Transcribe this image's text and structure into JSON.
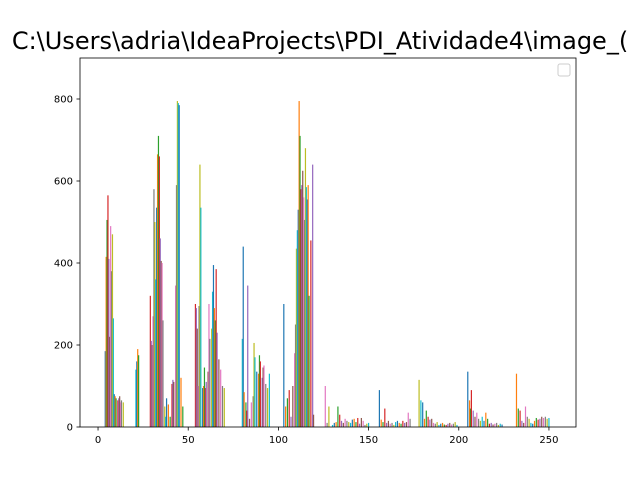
{
  "window": {
    "title": "C:\\Users\\adria\\IdeaProjects\\PDI_Atividade4\\image_("
  },
  "chart_data": {
    "type": "bar",
    "title": "C:\\Users\\adria\\IdeaProjects\\PDI_Atividade4\\image_(",
    "xlabel": "",
    "ylabel": "",
    "xlim": [
      -10,
      265
    ],
    "ylim": [
      0,
      800
    ],
    "y_display_max": 900,
    "grid": false,
    "legend": {
      "placement": "top-right",
      "entries": []
    },
    "x_ticks": [
      0,
      50,
      100,
      150,
      200,
      250
    ],
    "y_ticks": [
      0,
      200,
      400,
      600,
      800
    ],
    "x_tick_labels": [
      "0",
      "50",
      "100",
      "150",
      "200",
      "250"
    ],
    "y_tick_labels": [
      "0",
      "200",
      "400",
      "600",
      "800"
    ],
    "palette": [
      "#1f77b4",
      "#ff7f0e",
      "#2ca02c",
      "#d62728",
      "#9467bd",
      "#8c564b",
      "#e377c2",
      "#7f7f7f",
      "#bcbd22",
      "#17becf"
    ],
    "series_note_bins": [
      [
        4,
        185
      ],
      [
        4.5,
        415
      ],
      [
        5,
        505
      ],
      [
        5.5,
        565
      ],
      [
        6,
        410
      ],
      [
        6.5,
        220
      ],
      [
        7,
        490
      ],
      [
        7.5,
        380
      ],
      [
        8,
        470
      ],
      [
        8.5,
        265
      ],
      [
        9,
        80
      ],
      [
        9.5,
        75
      ],
      [
        10,
        70
      ],
      [
        11,
        65
      ],
      [
        11.5,
        70
      ],
      [
        12,
        75
      ],
      [
        12.5,
        60
      ],
      [
        13,
        65
      ],
      [
        14,
        60
      ],
      [
        21,
        140
      ],
      [
        21.5,
        160
      ],
      [
        22,
        190
      ],
      [
        22.5,
        175
      ],
      [
        29,
        320
      ],
      [
        29.5,
        210
      ],
      [
        30,
        200
      ],
      [
        30.5,
        270
      ],
      [
        31,
        580
      ],
      [
        31.5,
        500
      ],
      [
        32,
        360
      ],
      [
        32.5,
        535
      ],
      [
        33,
        665
      ],
      [
        33.5,
        710
      ],
      [
        34,
        660
      ],
      [
        34.5,
        460
      ],
      [
        35,
        405
      ],
      [
        35.5,
        400
      ],
      [
        36,
        260
      ],
      [
        37,
        50
      ],
      [
        37.5,
        25
      ],
      [
        38,
        70
      ],
      [
        39,
        55
      ],
      [
        40,
        25
      ],
      [
        41,
        105
      ],
      [
        41.5,
        115
      ],
      [
        42,
        110
      ],
      [
        43,
        345
      ],
      [
        43.5,
        590
      ],
      [
        44,
        795
      ],
      [
        44.5,
        790
      ],
      [
        45,
        785
      ],
      [
        46,
        120
      ],
      [
        47,
        50
      ],
      [
        54,
        300
      ],
      [
        54.5,
        290
      ],
      [
        55,
        240
      ],
      [
        55.5,
        100
      ],
      [
        56,
        295
      ],
      [
        56.5,
        640
      ],
      [
        57,
        535
      ],
      [
        58,
        95
      ],
      [
        58.5,
        100
      ],
      [
        59,
        145
      ],
      [
        59.5,
        95
      ],
      [
        60,
        110
      ],
      [
        61,
        135
      ],
      [
        61.5,
        300
      ],
      [
        62,
        215
      ],
      [
        63,
        240
      ],
      [
        63.5,
        330
      ],
      [
        64,
        395
      ],
      [
        64.5,
        290
      ],
      [
        65,
        260
      ],
      [
        65.5,
        385
      ],
      [
        66,
        230
      ],
      [
        67,
        165
      ],
      [
        68,
        140
      ],
      [
        69,
        100
      ],
      [
        70,
        95
      ],
      [
        80,
        215
      ],
      [
        80.5,
        440
      ],
      [
        81,
        85
      ],
      [
        82,
        60
      ],
      [
        82.5,
        40
      ],
      [
        83,
        345
      ],
      [
        84,
        20
      ],
      [
        85,
        60
      ],
      [
        86,
        75
      ],
      [
        86.5,
        205
      ],
      [
        87,
        170
      ],
      [
        88,
        135
      ],
      [
        89,
        130
      ],
      [
        89.5,
        175
      ],
      [
        90,
        160
      ],
      [
        91,
        120
      ],
      [
        91.5,
        145
      ],
      [
        92,
        150
      ],
      [
        93,
        105
      ],
      [
        94,
        95
      ],
      [
        95,
        130
      ],
      [
        103,
        300
      ],
      [
        104,
        50
      ],
      [
        105,
        70
      ],
      [
        106,
        90
      ],
      [
        107,
        25
      ],
      [
        108,
        100
      ],
      [
        109,
        180
      ],
      [
        109.5,
        250
      ],
      [
        110,
        435
      ],
      [
        110.5,
        480
      ],
      [
        111,
        530
      ],
      [
        111.5,
        795
      ],
      [
        112,
        710
      ],
      [
        112.5,
        580
      ],
      [
        113,
        590
      ],
      [
        113.5,
        625
      ],
      [
        114,
        560
      ],
      [
        114.5,
        505
      ],
      [
        115,
        680
      ],
      [
        115.5,
        585
      ],
      [
        116,
        555
      ],
      [
        116.5,
        590
      ],
      [
        117,
        320
      ],
      [
        118,
        455
      ],
      [
        119,
        640
      ],
      [
        119.5,
        30
      ],
      [
        126,
        100
      ],
      [
        127,
        10
      ],
      [
        128,
        50
      ],
      [
        130,
        5
      ],
      [
        131,
        10
      ],
      [
        132,
        12
      ],
      [
        133,
        50
      ],
      [
        134,
        30
      ],
      [
        135,
        15
      ],
      [
        136,
        10
      ],
      [
        137,
        20
      ],
      [
        138,
        15
      ],
      [
        139,
        12
      ],
      [
        140,
        10
      ],
      [
        141,
        18
      ],
      [
        142,
        20
      ],
      [
        143,
        12
      ],
      [
        144,
        22
      ],
      [
        145,
        8
      ],
      [
        146,
        22
      ],
      [
        147,
        15
      ],
      [
        148,
        5
      ],
      [
        149,
        8
      ],
      [
        150,
        10
      ],
      [
        156,
        90
      ],
      [
        157,
        18
      ],
      [
        158,
        12
      ],
      [
        159,
        45
      ],
      [
        160,
        10
      ],
      [
        161,
        15
      ],
      [
        162,
        8
      ],
      [
        163,
        10
      ],
      [
        164,
        5
      ],
      [
        165,
        12
      ],
      [
        166,
        15
      ],
      [
        167,
        10
      ],
      [
        168,
        8
      ],
      [
        169,
        15
      ],
      [
        170,
        10
      ],
      [
        171,
        12
      ],
      [
        172,
        35
      ],
      [
        173,
        20
      ],
      [
        178,
        115
      ],
      [
        179,
        65
      ],
      [
        180,
        60
      ],
      [
        181,
        20
      ],
      [
        182,
        40
      ],
      [
        183,
        25
      ],
      [
        184,
        18
      ],
      [
        185,
        20
      ],
      [
        186,
        10
      ],
      [
        187,
        8
      ],
      [
        188,
        12
      ],
      [
        189,
        5
      ],
      [
        190,
        8
      ],
      [
        191,
        10
      ],
      [
        192,
        6
      ],
      [
        193,
        5
      ],
      [
        194,
        8
      ],
      [
        195,
        10
      ],
      [
        196,
        6
      ],
      [
        197,
        8
      ],
      [
        198,
        12
      ],
      [
        199,
        5
      ],
      [
        205,
        135
      ],
      [
        206,
        65
      ],
      [
        206.5,
        45
      ],
      [
        207,
        90
      ],
      [
        208,
        40
      ],
      [
        209,
        25
      ],
      [
        210,
        35
      ],
      [
        211,
        20
      ],
      [
        212,
        15
      ],
      [
        213,
        25
      ],
      [
        214,
        15
      ],
      [
        215,
        35
      ],
      [
        216,
        20
      ],
      [
        217,
        8
      ],
      [
        218,
        10
      ],
      [
        219,
        6
      ],
      [
        220,
        8
      ],
      [
        221,
        10
      ],
      [
        222,
        5
      ],
      [
        223,
        8
      ],
      [
        224,
        6
      ],
      [
        232,
        130
      ],
      [
        233,
        45
      ],
      [
        234,
        40
      ],
      [
        235,
        15
      ],
      [
        236,
        10
      ],
      [
        237,
        50
      ],
      [
        238,
        25
      ],
      [
        239,
        20
      ],
      [
        240,
        10
      ],
      [
        241,
        8
      ],
      [
        242,
        15
      ],
      [
        243,
        22
      ],
      [
        244,
        18
      ],
      [
        245,
        20
      ],
      [
        246,
        25
      ],
      [
        247,
        22
      ],
      [
        248,
        25
      ],
      [
        249,
        20
      ],
      [
        250,
        22
      ]
    ]
  }
}
